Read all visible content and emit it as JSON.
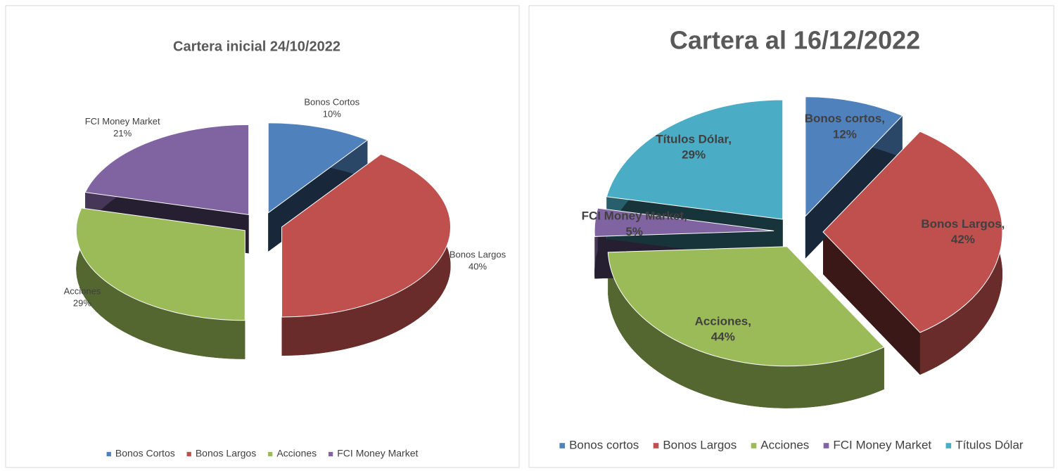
{
  "chart_data": [
    {
      "type": "pie3d",
      "title": "Cartera inicial 24/10/2022",
      "categories": [
        "Bonos Cortos",
        "Bonos Largos",
        "Acciones",
        "FCI Money Market"
      ],
      "values": [
        10,
        40,
        29,
        21
      ],
      "value_labels": [
        "10%",
        "40%",
        "29%",
        "21%"
      ],
      "colors": [
        "#4f81bd",
        "#c0504d",
        "#9bbb59",
        "#8064a2"
      ],
      "exploded": true,
      "data_labels": "outside",
      "legend": "bottom"
    },
    {
      "type": "pie3d",
      "title": "Cartera al 16/12/2022",
      "categories": [
        "Bonos cortos",
        "Bonos Largos",
        "Acciones",
        "FCI Money Market",
        "Títulos Dólar"
      ],
      "values": [
        12,
        42,
        44,
        5,
        29
      ],
      "value_labels": [
        "12%",
        "42%",
        "44%",
        "5%",
        "29%"
      ],
      "label_separator": ",",
      "colors": [
        "#4f81bd",
        "#c0504d",
        "#9bbb59",
        "#8064a2",
        "#4bacc6"
      ],
      "exploded": true,
      "data_labels": "inside",
      "legend": "bottom"
    }
  ]
}
